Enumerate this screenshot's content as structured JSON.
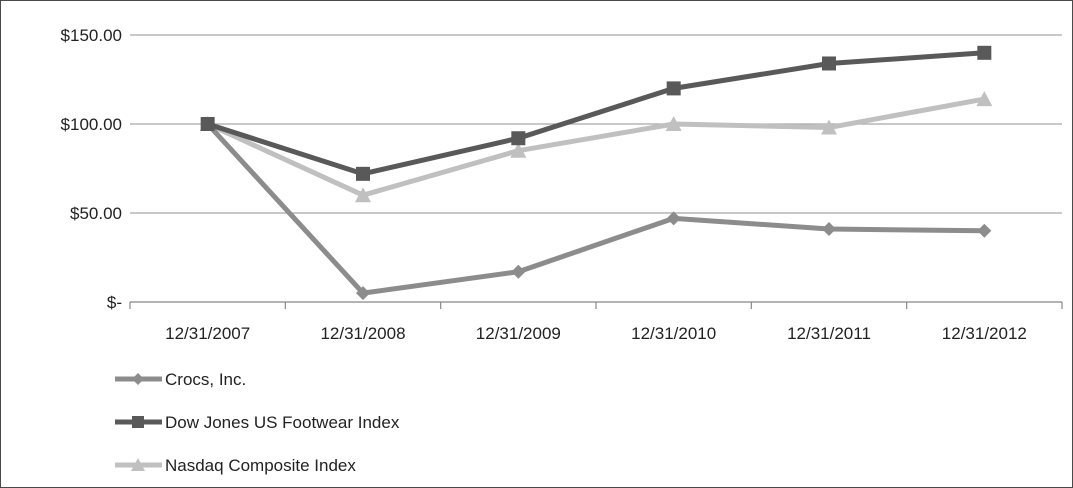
{
  "chart_data": {
    "type": "line",
    "categories": [
      "12/31/2007",
      "12/31/2008",
      "12/31/2009",
      "12/31/2010",
      "12/31/2011",
      "12/31/2012"
    ],
    "y_ticks": [
      0,
      50,
      100,
      150
    ],
    "y_tick_labels": [
      "$-",
      "$50.00",
      "$100.00",
      "$150.00"
    ],
    "ylim": [
      0,
      150
    ],
    "grid": "horizontal",
    "legend_position": "bottom-left",
    "series": [
      {
        "name": "Crocs, Inc.",
        "values": [
          100,
          5,
          17,
          47,
          41,
          40
        ],
        "color": "#8c8c8c",
        "marker": "diamond"
      },
      {
        "name": "Dow Jones US Footwear Index",
        "values": [
          100,
          72,
          92,
          120,
          134,
          140
        ],
        "color": "#595959",
        "marker": "square"
      },
      {
        "name": "Nasdaq Composite Index",
        "values": [
          100,
          60,
          85,
          100,
          98,
          114
        ],
        "color": "#c0c0c0",
        "marker": "triangle"
      }
    ]
  }
}
